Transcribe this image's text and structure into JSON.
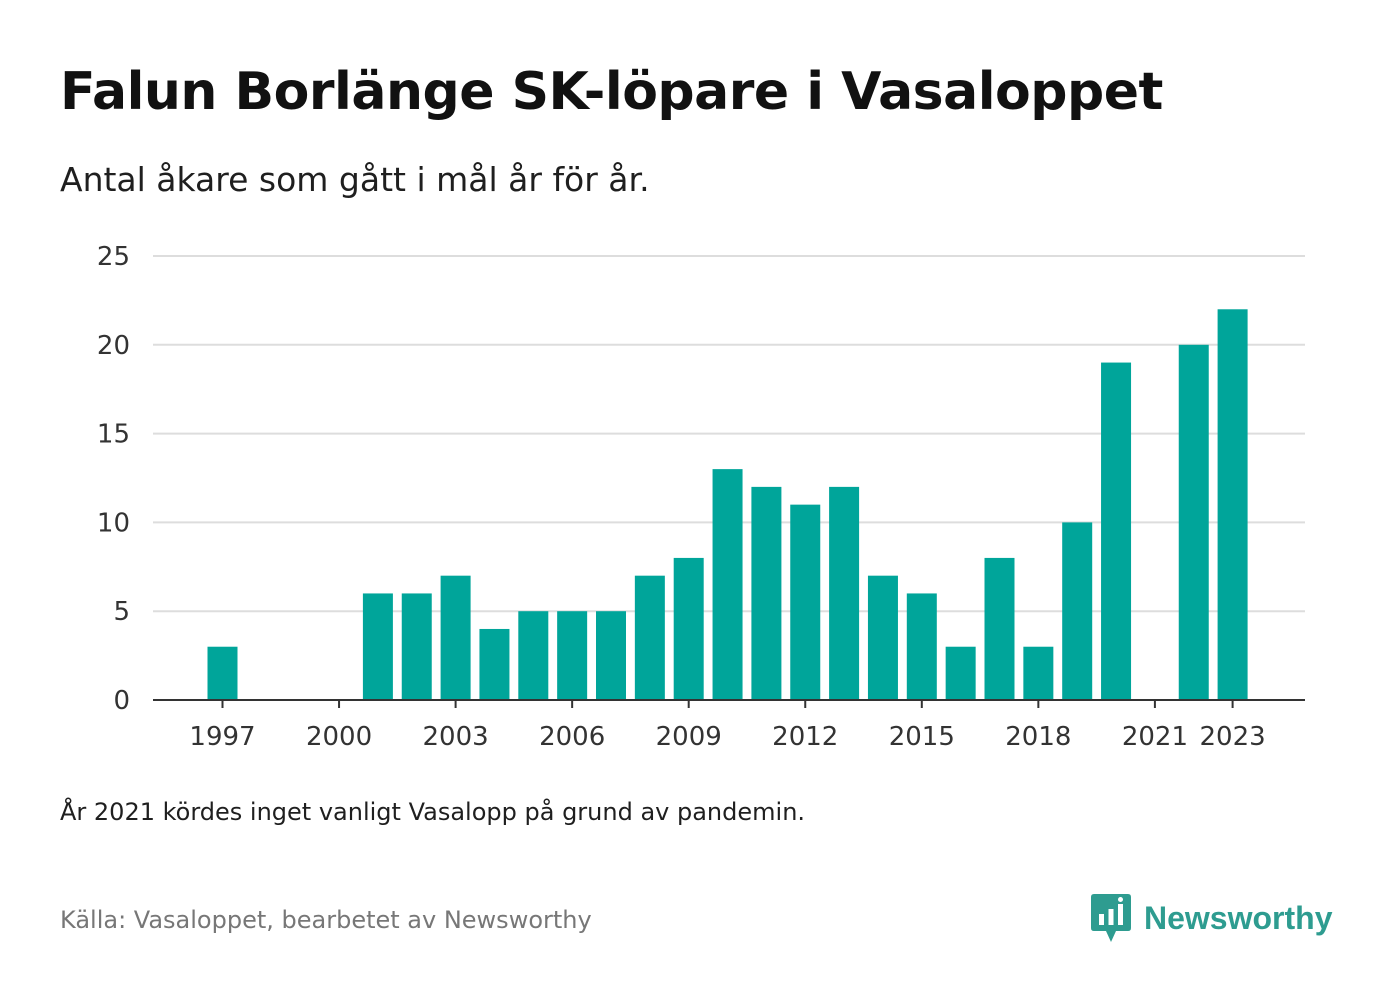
{
  "title": "Falun Borlänge SK-löpare i Vasaloppet",
  "subtitle": "Antal åkare som gått i mål år för år.",
  "note": "År 2021 kördes inget vanligt Vasalopp på grund av pandemin.",
  "source": "Källa: Vasaloppet, bearbetet av Newsworthy",
  "brand": {
    "name": "Newsworthy",
    "icon": "newsworthy-logo-icon",
    "color": "#2e9c90"
  },
  "colors": {
    "bar": "#00a59a",
    "grid": "#dddddd",
    "axis": "#333333"
  },
  "chart_data": {
    "type": "bar",
    "categories": [
      1997,
      1998,
      1999,
      2000,
      2001,
      2002,
      2003,
      2004,
      2005,
      2006,
      2007,
      2008,
      2009,
      2010,
      2011,
      2012,
      2013,
      2014,
      2015,
      2016,
      2017,
      2018,
      2019,
      2020,
      2021,
      2022,
      2023
    ],
    "values": [
      3,
      0,
      0,
      0,
      6,
      6,
      7,
      4,
      5,
      5,
      5,
      7,
      8,
      13,
      12,
      11,
      12,
      7,
      6,
      3,
      8,
      3,
      10,
      19,
      0,
      20,
      22
    ],
    "x_tick_labels": [
      "1997",
      "2000",
      "2003",
      "2006",
      "2009",
      "2012",
      "2015",
      "2018",
      "2021",
      "2023"
    ],
    "y_ticks": [
      0,
      5,
      10,
      15,
      20,
      25
    ],
    "ylim": [
      0,
      25
    ],
    "grid": true,
    "legend": false
  }
}
